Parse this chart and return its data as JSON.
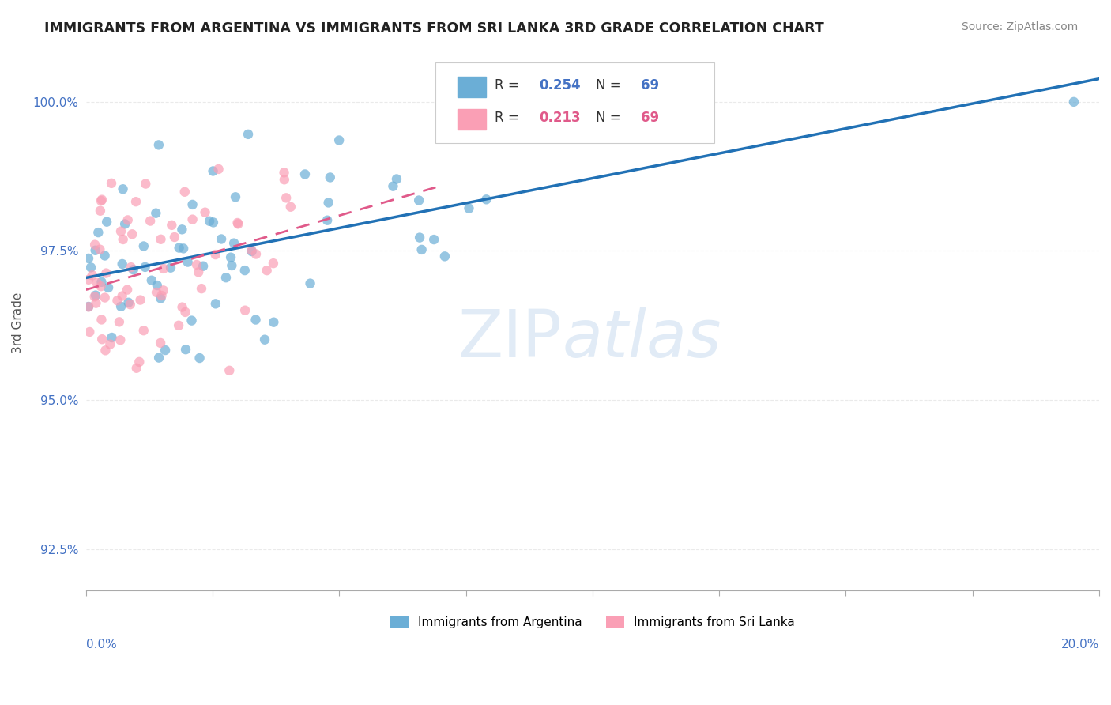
{
  "title": "IMMIGRANTS FROM ARGENTINA VS IMMIGRANTS FROM SRI LANKA 3RD GRADE CORRELATION CHART",
  "source": "Source: ZipAtlas.com",
  "ylabel": "3rd Grade",
  "xlim": [
    0.0,
    20.0
  ],
  "ylim": [
    91.8,
    100.8
  ],
  "yticks": [
    92.5,
    95.0,
    97.5,
    100.0
  ],
  "ytick_labels": [
    "92.5%",
    "95.0%",
    "97.5%",
    "100.0%"
  ],
  "legend1_R": "0.254",
  "legend1_N": "69",
  "legend2_R": "0.213",
  "legend2_N": "69",
  "color_argentina": "#6baed6",
  "color_srilanka": "#fa9fb5",
  "color_argentina_line": "#2171b5",
  "color_srilanka_line": "#e05a8a"
}
